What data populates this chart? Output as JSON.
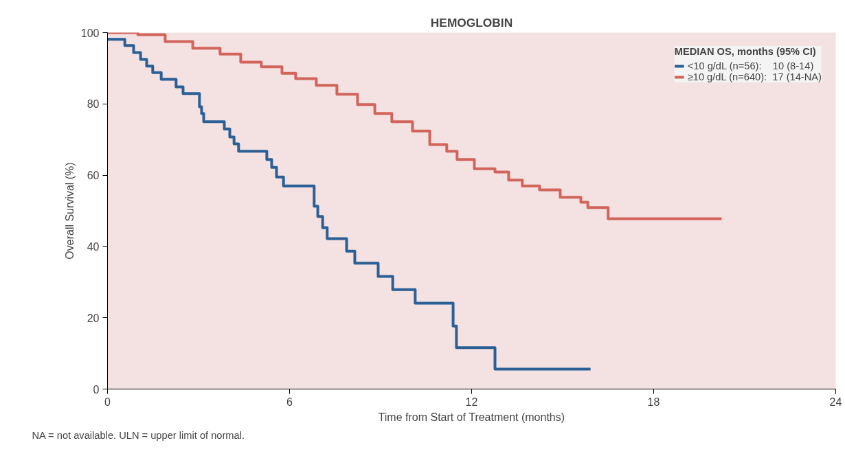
{
  "chart_data": {
    "type": "step",
    "title": "HEMOGLOBIN",
    "xlabel": "Time from Start of Treatment (months)",
    "ylabel": "Overall Survival (%)",
    "legend_title": "MEDIAN OS, months (95% CI)",
    "xlim": [
      0,
      24
    ],
    "xticks": [
      0,
      6,
      12,
      18,
      24
    ],
    "ylim": [
      0,
      100
    ],
    "yticks": [
      0,
      20,
      40,
      60,
      80,
      100
    ],
    "grid": false,
    "legend": "top right",
    "series": [
      {
        "name": "<10 g/dL (n=56):    10 (8-14)",
        "color": "#2a6096",
        "x": [
          0,
          0.57,
          0.86,
          1.09,
          1.29,
          1.49,
          1.77,
          2.26,
          2.49,
          3.03,
          3.1,
          3.17,
          3.85,
          4.03,
          4.17,
          4.32,
          5.25,
          5.41,
          5.57,
          5.8,
          6.81,
          6.93,
          7.09,
          7.24,
          7.88,
          8.15,
          8.92,
          9.4,
          10.14,
          11.39,
          11.5,
          12.77,
          15.92
        ],
        "values": [
          98.1,
          96.4,
          94.4,
          92.5,
          90.6,
          88.8,
          86.9,
          84.8,
          82.9,
          79.2,
          77.3,
          75.0,
          73.0,
          70.7,
          68.8,
          66.7,
          64.4,
          62.2,
          59.5,
          57.0,
          51.3,
          48.4,
          45.3,
          42.2,
          38.7,
          35.3,
          31.6,
          27.9,
          24.1,
          17.7,
          11.6,
          5.6,
          5.6
        ]
      },
      {
        "name": "≥10 g/dL (n=640):  17 (14-NA)",
        "color": "#d1655c",
        "x": [
          0,
          1.0,
          1.9,
          2.81,
          3.71,
          4.39,
          5.07,
          5.75,
          6.2,
          6.88,
          7.56,
          8.24,
          8.81,
          9.37,
          10.05,
          10.62,
          11.18,
          11.52,
          12.09,
          12.77,
          13.22,
          13.67,
          14.24,
          14.92,
          15.6,
          15.83,
          16.5,
          20.24
        ],
        "values": [
          100,
          99.4,
          97.5,
          95.6,
          94.0,
          91.7,
          90.4,
          88.6,
          87.1,
          85.2,
          82.7,
          79.8,
          77.3,
          75.0,
          72.4,
          68.6,
          66.7,
          64.4,
          61.8,
          60.9,
          58.6,
          57.0,
          55.9,
          53.8,
          52.4,
          50.9,
          47.8,
          47.8
        ]
      }
    ],
    "annotations": [
      "NA = not available. ULN = upper limit of normal."
    ]
  }
}
